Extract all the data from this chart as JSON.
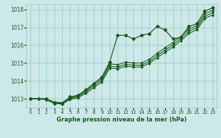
{
  "title": "Graphe pression niveau de la mer (hPa)",
  "bg_color": "#cce8e8",
  "grid_color": "#aacece",
  "line_color": "#1a5c1a",
  "marker_color": "#1a5c1a",
  "xlim": [
    -0.5,
    23.5
  ],
  "ylim": [
    1012.5,
    1018.3
  ],
  "yticks": [
    1013,
    1014,
    1015,
    1016,
    1017,
    1018
  ],
  "xticks": [
    0,
    1,
    2,
    3,
    4,
    5,
    6,
    7,
    8,
    9,
    10,
    11,
    12,
    13,
    14,
    15,
    16,
    17,
    18,
    19,
    20,
    21,
    22,
    23
  ],
  "series1": [
    1013.0,
    1013.0,
    1013.0,
    1012.75,
    1012.75,
    1013.1,
    1013.2,
    1013.5,
    1013.85,
    1014.2,
    1015.05,
    1016.55,
    1016.55,
    1016.35,
    1016.55,
    1016.65,
    1017.05,
    1016.85,
    1016.35,
    1016.45,
    1017.05,
    1017.2,
    1017.9,
    1018.1
  ],
  "series2": [
    1013.0,
    1013.0,
    1012.98,
    1012.82,
    1012.78,
    1013.05,
    1013.18,
    1013.45,
    1013.82,
    1014.15,
    1014.95,
    1014.9,
    1015.05,
    1015.0,
    1015.0,
    1015.2,
    1015.55,
    1015.85,
    1016.15,
    1016.5,
    1016.9,
    1017.1,
    1017.75,
    1017.95
  ],
  "series3": [
    1013.0,
    1013.0,
    1012.96,
    1012.78,
    1012.74,
    1013.0,
    1013.12,
    1013.38,
    1013.72,
    1014.05,
    1014.82,
    1014.78,
    1014.92,
    1014.88,
    1014.88,
    1015.08,
    1015.42,
    1015.72,
    1016.02,
    1016.38,
    1016.78,
    1016.98,
    1017.62,
    1017.82
  ],
  "series4": [
    1013.0,
    1013.0,
    1012.94,
    1012.74,
    1012.7,
    1012.96,
    1013.06,
    1013.3,
    1013.62,
    1013.94,
    1014.72,
    1014.68,
    1014.82,
    1014.78,
    1014.78,
    1014.98,
    1015.3,
    1015.6,
    1015.9,
    1016.26,
    1016.66,
    1016.86,
    1017.5,
    1017.7
  ]
}
